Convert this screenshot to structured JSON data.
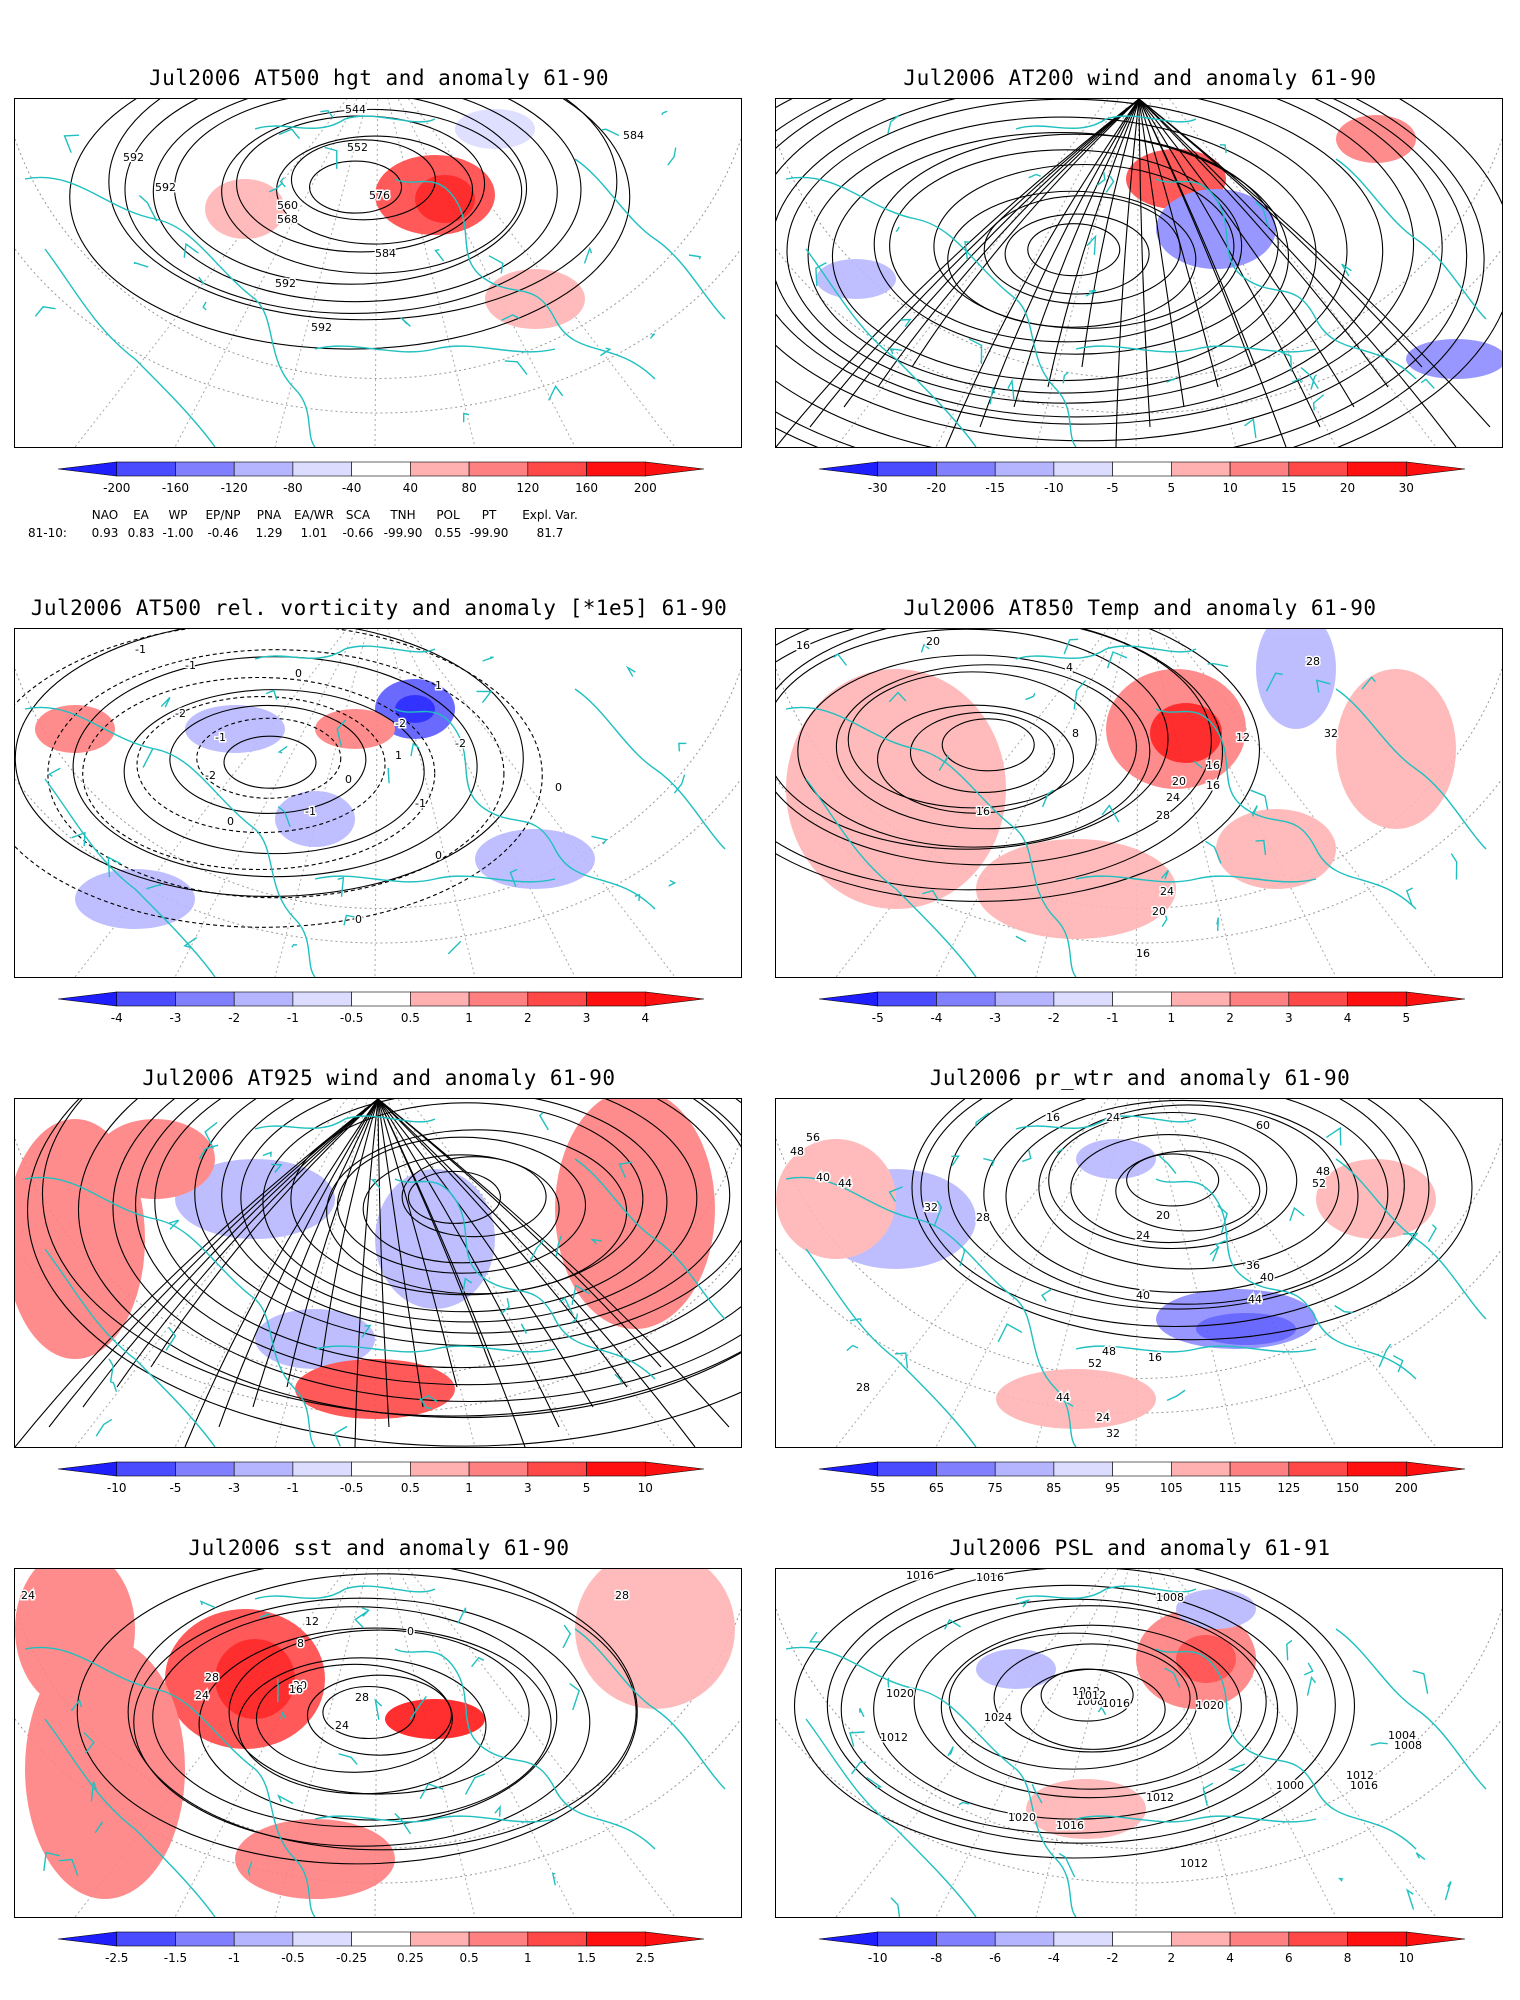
{
  "panels": [
    {
      "title": "Jul2006 AT500 hgt and anomaly 61-90",
      "labels": [
        "592",
        "544",
        "552",
        "584",
        "592",
        "560",
        "576",
        "568",
        "584",
        "592",
        "592"
      ],
      "colorbar": [
        "-200",
        "-160",
        "-120",
        "-80",
        "-40",
        "40",
        "80",
        "120",
        "160",
        "200"
      ]
    },
    {
      "title": "Jul2006 AT200 wind and anomaly 61-90",
      "labels": [],
      "colorbar": [
        "-30",
        "-20",
        "-15",
        "-10",
        "-5",
        "5",
        "10",
        "15",
        "20",
        "30"
      ]
    },
    {
      "title": "Jul2006 AT500 rel. vorticity and anomaly [*1e5] 61-90",
      "labels": [
        "-1",
        "-1",
        "0",
        "-2",
        "-1",
        "-2",
        "1",
        "-2",
        "-2",
        "0",
        "-1",
        "0",
        "1",
        "0",
        "-1",
        "0",
        "0"
      ],
      "colorbar": [
        "-4",
        "-3",
        "-2",
        "-1",
        "-0.5",
        "0.5",
        "1",
        "2",
        "3",
        "4"
      ]
    },
    {
      "title": "Jul2006 AT850 Temp and anomaly 61-90",
      "labels": [
        "16",
        "20",
        "4",
        "28",
        "8",
        "12",
        "32",
        "16",
        "16",
        "20",
        "24",
        "28",
        "16",
        "24",
        "20",
        "16"
      ],
      "colorbar": [
        "-5",
        "-4",
        "-3",
        "-2",
        "-1",
        "1",
        "2",
        "3",
        "4",
        "5"
      ]
    },
    {
      "title": "Jul2006 AT925 wind and anomaly 61-90",
      "labels": [],
      "colorbar": [
        "-10",
        "-5",
        "-3",
        "-1",
        "-0.5",
        "0.5",
        "1",
        "3",
        "5",
        "10"
      ]
    },
    {
      "title": "Jul2006 pr_wtr and anomaly 61-90",
      "labels": [
        "48",
        "56",
        "40",
        "44",
        "16",
        "24",
        "60",
        "48",
        "52",
        "32",
        "28",
        "20",
        "24",
        "40",
        "36",
        "40",
        "44",
        "48",
        "52",
        "44",
        "16",
        "24",
        "32",
        "28"
      ],
      "colorbar": [
        "55",
        "65",
        "75",
        "85",
        "95",
        "105",
        "115",
        "125",
        "150",
        "200"
      ]
    },
    {
      "title": "Jul2006 sst and anomaly 61-90",
      "labels": [
        "24",
        "28",
        "12",
        "8",
        "20",
        "16",
        "28",
        "24",
        "28",
        "24",
        "0"
      ],
      "colorbar": [
        "-2.5",
        "-1.5",
        "-1",
        "-0.5",
        "-0.25",
        "0.25",
        "0.5",
        "1",
        "1.5",
        "2.5"
      ]
    },
    {
      "title": "Jul2006 PSL and anomaly 61-91",
      "labels": [
        "1016",
        "1016",
        "1008",
        "1012",
        "1020",
        "1024",
        "1008",
        "1012",
        "1016",
        "1020",
        "1012",
        "1000",
        "1004",
        "1008",
        "1012",
        "1016",
        "1012",
        "1016",
        "1020",
        "1012"
      ],
      "colorbar": [
        "-10",
        "-8",
        "-6",
        "-4",
        "-2",
        "2",
        "4",
        "6",
        "8",
        "10"
      ]
    }
  ],
  "index_table": {
    "headers": [
      "NAO",
      "EA",
      "WP",
      "EP/NP",
      "PNA",
      "EA/WR",
      "SCA",
      "TNH",
      "POL",
      "PT",
      "Expl. Var."
    ],
    "row_label": "81-10:",
    "values": [
      "0.93",
      "0.83",
      "-1.00",
      "-0.46",
      "1.29",
      "1.01",
      "-0.66",
      "-99.90",
      "0.55",
      "-99.90",
      "81.7"
    ]
  },
  "colors": {
    "coastline": "#20c0c0",
    "cold": "#2020ff",
    "warm": "#ff2020"
  }
}
